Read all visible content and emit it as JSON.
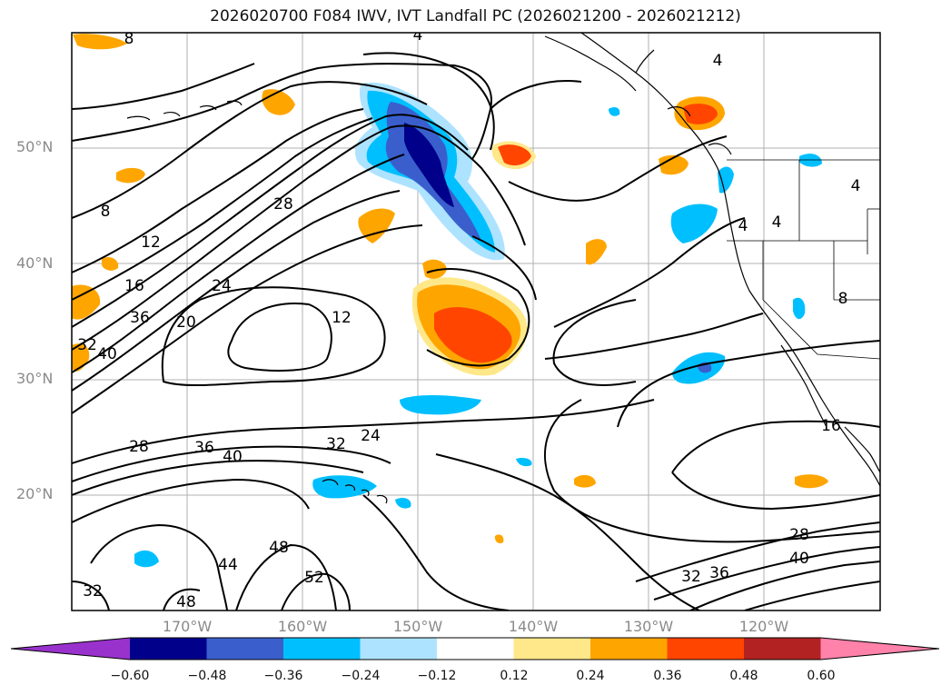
{
  "title": "2026020700 F084 IWV, IVT Landfall PC (2026021200 - 2026021212)",
  "lat_labels": [
    "50°N",
    "40°N",
    "30°N",
    "20°N"
  ],
  "lon_labels": [
    "170°W",
    "160°W",
    "150°W",
    "140°W",
    "130°W",
    "120°W"
  ],
  "colorbar": {
    "ticks": [
      "−0.60",
      "−0.48",
      "−0.36",
      "−0.24",
      "−0.12",
      "0.12",
      "0.24",
      "0.36",
      "0.48",
      "0.60"
    ],
    "colors": [
      "#9932CC",
      "#00008B",
      "#3A5FCD",
      "#00BFFF",
      "#ADE3FF",
      "#FFFFFF",
      "#FFE88A",
      "#FFA500",
      "#FF4500",
      "#B22222",
      "#FF82AB"
    ]
  },
  "contour_labels": [
    "8",
    "4",
    "4",
    "4",
    "4",
    "4",
    "8",
    "12",
    "16",
    "20",
    "24",
    "28",
    "36",
    "32",
    "40",
    "12",
    "28",
    "36",
    "40",
    "32",
    "24",
    "44",
    "48",
    "52",
    "48",
    "32",
    "16",
    "8",
    "28",
    "40",
    "32",
    "36"
  ]
}
